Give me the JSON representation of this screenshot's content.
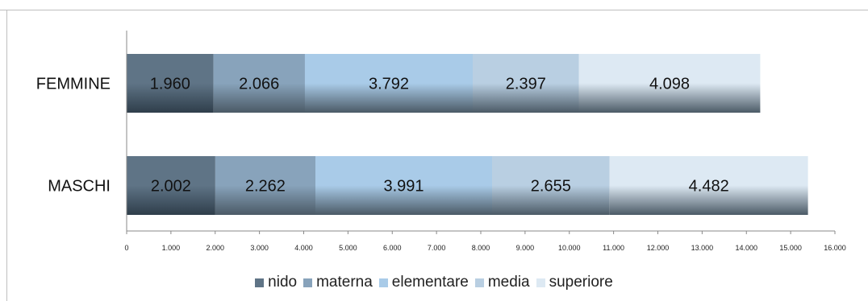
{
  "chart_data": {
    "type": "bar",
    "orientation": "horizontal",
    "stacked": true,
    "categories": [
      "FEMMINE",
      "MASCHI"
    ],
    "series": [
      {
        "name": "nido",
        "values": [
          1960,
          2002
        ],
        "labels": [
          "1.960",
          "2.002"
        ],
        "color": "#5f7486"
      },
      {
        "name": "materna",
        "values": [
          2066,
          2262
        ],
        "labels": [
          "2.066",
          "2.262"
        ],
        "color": "#88a3bb"
      },
      {
        "name": "elementare",
        "values": [
          3792,
          3991
        ],
        "labels": [
          "3.792",
          "3.991"
        ],
        "color": "#a9cbe8"
      },
      {
        "name": "media",
        "values": [
          2397,
          2655
        ],
        "labels": [
          "2.397",
          "2.655"
        ],
        "color": "#b9cfe2"
      },
      {
        "name": "superiore",
        "values": [
          4098,
          4482
        ],
        "labels": [
          "4.098",
          "4.482"
        ],
        "color": "#dde9f3"
      }
    ],
    "xlim": [
      0,
      16000
    ],
    "xticks": [
      0,
      1000,
      2000,
      3000,
      4000,
      5000,
      6000,
      7000,
      8000,
      9000,
      10000,
      11000,
      12000,
      13000,
      14000,
      15000,
      16000
    ],
    "xtick_labels": [
      "0",
      "1.000",
      "2.000",
      "3.000",
      "4.000",
      "5.000",
      "6.000",
      "7.000",
      "8.000",
      "9.000",
      "10.000",
      "11.000",
      "12.000",
      "13.000",
      "14.000",
      "15.000",
      "16.000"
    ],
    "grid": false,
    "legend_position": "bottom"
  }
}
